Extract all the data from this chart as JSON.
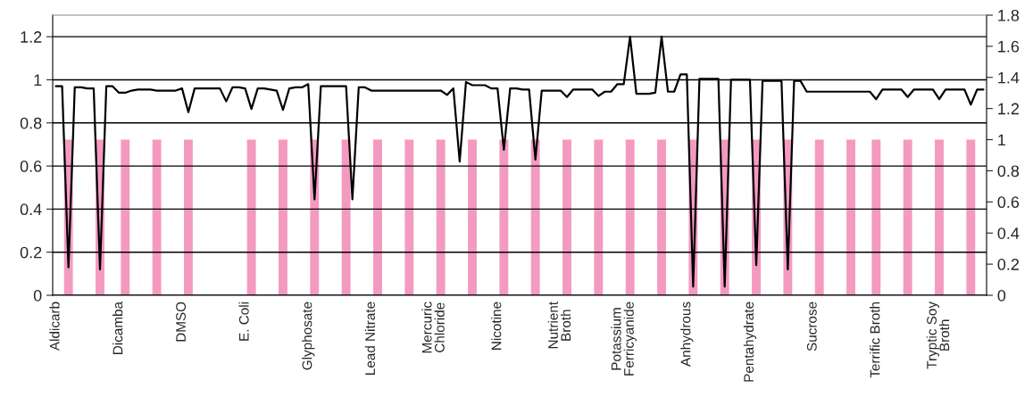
{
  "chart_data": {
    "type": "line",
    "categories": [
      "Aldicarb",
      null,
      null,
      null,
      null,
      null,
      null,
      null,
      null,
      null,
      "Dicamba",
      null,
      null,
      null,
      null,
      null,
      null,
      null,
      null,
      null,
      "DMSO",
      null,
      null,
      null,
      null,
      null,
      null,
      null,
      null,
      null,
      "E. Coli",
      null,
      null,
      null,
      null,
      null,
      null,
      null,
      null,
      null,
      "Glyphosate",
      null,
      null,
      null,
      null,
      null,
      null,
      null,
      null,
      null,
      "Lead Nitrate",
      null,
      null,
      null,
      null,
      null,
      null,
      null,
      null,
      null,
      "Mercuric\nChloride",
      null,
      null,
      null,
      null,
      null,
      null,
      null,
      null,
      null,
      "Nicotine",
      null,
      null,
      null,
      null,
      null,
      null,
      null,
      null,
      null,
      "Nutrient\nBroth",
      null,
      null,
      null,
      null,
      null,
      null,
      null,
      null,
      null,
      "Potassium\nFerricyanide",
      null,
      null,
      null,
      null,
      null,
      null,
      null,
      null,
      null,
      "Anhydrous",
      null,
      null,
      null,
      null,
      null,
      null,
      null,
      null,
      null,
      "Pentahydrate",
      null,
      null,
      null,
      null,
      null,
      null,
      null,
      null,
      null,
      "Sucrose",
      null,
      null,
      null,
      null,
      null,
      null,
      null,
      null,
      null,
      "Terrific Broth",
      null,
      null,
      null,
      null,
      null,
      null,
      null,
      null,
      null,
      "Tryptic Soy\nBroth",
      null,
      null,
      null,
      null,
      null,
      null,
      null
    ],
    "series": [
      {
        "type": "bar",
        "axis": "y2",
        "color": "#f49ac1",
        "values": [
          null,
          null,
          1,
          null,
          null,
          null,
          null,
          1,
          null,
          null,
          null,
          1,
          null,
          null,
          null,
          null,
          1,
          null,
          null,
          null,
          null,
          1,
          null,
          null,
          null,
          null,
          null,
          null,
          null,
          null,
          null,
          1,
          null,
          null,
          null,
          null,
          1,
          null,
          null,
          null,
          null,
          1,
          null,
          null,
          null,
          null,
          1,
          null,
          null,
          null,
          null,
          1,
          null,
          null,
          null,
          null,
          1,
          null,
          null,
          null,
          null,
          1,
          null,
          null,
          null,
          null,
          1,
          null,
          null,
          null,
          null,
          1,
          null,
          null,
          null,
          null,
          1,
          null,
          null,
          null,
          null,
          1,
          null,
          null,
          null,
          null,
          1,
          null,
          null,
          null,
          null,
          1,
          null,
          null,
          null,
          null,
          1,
          null,
          null,
          null,
          null,
          1,
          null,
          null,
          null,
          null,
          1,
          null,
          null,
          null,
          null,
          1,
          null,
          null,
          null,
          null,
          1,
          null,
          null,
          null,
          null,
          1,
          null,
          null,
          null,
          null,
          1,
          null,
          null,
          null,
          1,
          null,
          null,
          null,
          null,
          1,
          null,
          null,
          null,
          null,
          1,
          null,
          null,
          null,
          null,
          1,
          null,
          null
        ]
      },
      {
        "color": "#000000",
        "values": [
          0.97,
          0.97,
          0.13,
          0.965,
          0.965,
          0.96,
          0.96,
          0.12,
          0.97,
          0.97,
          0.94,
          0.94,
          0.95,
          0.955,
          0.955,
          0.955,
          0.95,
          0.95,
          0.95,
          0.95,
          0.96,
          0.85,
          0.96,
          0.96,
          0.96,
          0.96,
          0.96,
          0.9,
          0.965,
          0.965,
          0.96,
          0.865,
          0.96,
          0.96,
          0.955,
          0.95,
          0.86,
          0.96,
          0.965,
          0.965,
          0.98,
          0.445,
          0.97,
          0.97,
          0.97,
          0.97,
          0.97,
          0.445,
          0.965,
          0.965,
          0.95,
          0.95,
          0.95,
          0.95,
          0.95,
          0.95,
          0.95,
          0.95,
          0.95,
          0.95,
          0.95,
          0.95,
          0.93,
          0.96,
          0.62,
          0.99,
          0.975,
          0.975,
          0.975,
          0.96,
          0.96,
          0.675,
          0.96,
          0.96,
          0.955,
          0.955,
          0.63,
          0.95,
          0.95,
          0.95,
          0.95,
          0.92,
          0.955,
          0.955,
          0.955,
          0.955,
          0.925,
          0.945,
          0.945,
          0.98,
          0.98,
          1.2,
          0.935,
          0.935,
          0.935,
          0.94,
          1.2,
          0.945,
          0.945,
          1.025,
          1.025,
          0.04,
          1.005,
          1.005,
          1.005,
          1.005,
          0.04,
          1.0,
          1.0,
          1.0,
          1.0,
          0.14,
          0.995,
          0.995,
          0.995,
          0.995,
          0.12,
          0.995,
          0.995,
          0.945,
          0.945,
          0.945,
          0.945,
          0.945,
          0.945,
          0.945,
          0.945,
          0.945,
          0.945,
          0.945,
          0.91,
          0.955,
          0.955,
          0.955,
          0.955,
          0.92,
          0.955,
          0.955,
          0.955,
          0.955,
          0.91,
          0.955,
          0.955,
          0.955,
          0.955,
          0.885,
          0.955,
          0.955
        ]
      }
    ],
    "ylim": [
      0,
      1.3
    ],
    "yticks": [
      0,
      0.2,
      0.4,
      0.6,
      0.8,
      1,
      1.2
    ],
    "y2lim": [
      0,
      1.8
    ],
    "y2ticks": [
      0,
      0.2,
      0.4,
      0.6,
      0.8,
      1,
      1.2,
      1.4,
      1.6,
      1.8
    ],
    "grid": "y"
  }
}
